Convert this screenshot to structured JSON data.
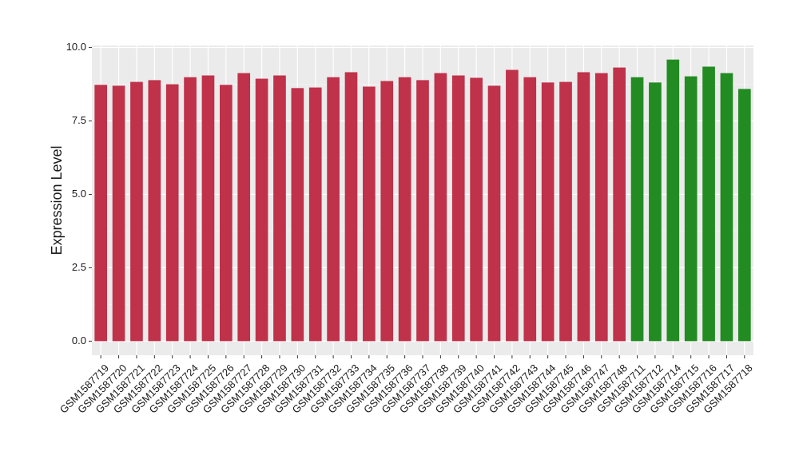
{
  "chart_data": {
    "type": "bar",
    "y_label": "Expression Level",
    "categories": [
      "GSM1587719",
      "GSM1587720",
      "GSM1587721",
      "GSM1587722",
      "GSM1587723",
      "GSM1587724",
      "GSM1587725",
      "GSM1587726",
      "GSM1587727",
      "GSM1587728",
      "GSM1587729",
      "GSM1587730",
      "GSM1587731",
      "GSM1587732",
      "GSM1587733",
      "GSM1587734",
      "GSM1587735",
      "GSM1587736",
      "GSM1587737",
      "GSM1587738",
      "GSM1587739",
      "GSM1587740",
      "GSM1587741",
      "GSM1587742",
      "GSM1587743",
      "GSM1587744",
      "GSM1587745",
      "GSM1587746",
      "GSM1587747",
      "GSM1587748",
      "GSM1587711",
      "GSM1587712",
      "GSM1587714",
      "GSM1587715",
      "GSM1587716",
      "GSM1587717",
      "GSM1587718"
    ],
    "values": [
      8.73,
      8.7,
      8.83,
      8.89,
      8.75,
      8.99,
      9.05,
      8.73,
      9.13,
      8.94,
      9.05,
      8.62,
      8.64,
      8.99,
      9.16,
      8.67,
      8.86,
      8.99,
      8.89,
      9.13,
      9.05,
      8.97,
      8.7,
      9.24,
      8.99,
      8.81,
      8.83,
      9.16,
      9.13,
      9.32,
      8.99,
      8.81,
      9.59,
      9.02,
      9.35,
      9.13,
      8.59
    ],
    "colors": [
      "#c0314a",
      "#c0314a",
      "#c0314a",
      "#c0314a",
      "#c0314a",
      "#c0314a",
      "#c0314a",
      "#c0314a",
      "#c0314a",
      "#c0314a",
      "#c0314a",
      "#c0314a",
      "#c0314a",
      "#c0314a",
      "#c0314a",
      "#c0314a",
      "#c0314a",
      "#c0314a",
      "#c0314a",
      "#c0314a",
      "#c0314a",
      "#c0314a",
      "#c0314a",
      "#c0314a",
      "#c0314a",
      "#c0314a",
      "#c0314a",
      "#c0314a",
      "#c0314a",
      "#c0314a",
      "#228b22",
      "#228b22",
      "#228b22",
      "#228b22",
      "#228b22",
      "#228b22",
      "#228b22"
    ],
    "ylim": [
      -0.48,
      10.07
    ],
    "yticks": [
      {
        "value": 0,
        "label": "0.0"
      },
      {
        "value": 2.5,
        "label": "2.5"
      },
      {
        "value": 5,
        "label": "5.0"
      },
      {
        "value": 7.5,
        "label": "7.5"
      },
      {
        "value": 10,
        "label": "10.0"
      }
    ],
    "grid": true
  }
}
